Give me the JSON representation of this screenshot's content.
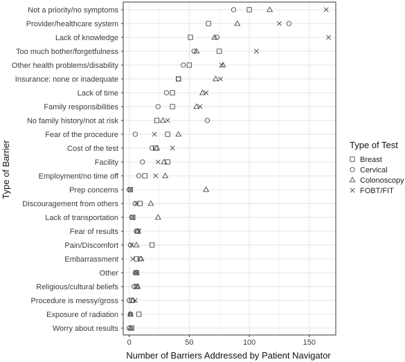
{
  "chart_data": {
    "type": "scatter",
    "title": "",
    "xlabel": "Number of Barriers Addressed by Patient Navigator",
    "ylabel": "Type of Barrier",
    "xlim": [
      -5,
      172
    ],
    "xticks": [
      0,
      50,
      100,
      150
    ],
    "grid": true,
    "legend_title": "Type of Test",
    "legend_position": "right",
    "categories": [
      "Not a priority/no symptoms",
      "Provider/healthcare system",
      "Lack of knowledge",
      "Too much bother/forgetfulness",
      "Other health problems/disability",
      "Insurance: none or inadequate",
      "Lack of time",
      "Family responsibilities",
      "No family history/not at risk",
      "Fear of the procedure",
      "Cost of the test",
      "Facility",
      "Employment/no time off",
      "Prep concerns",
      "Discouragement from others",
      "Lack of transportation",
      "Fear of results",
      "Pain/Discomfort",
      "Embarrassment",
      "Other",
      "Religious/cultural beliefs",
      "Procedure is messy/gross",
      "Exposure of radiation",
      "Worry about results"
    ],
    "series": [
      {
        "name": "Breast",
        "marker": "square",
        "values": [
          100,
          66,
          51,
          75,
          50,
          41,
          36,
          36,
          23,
          32,
          22,
          32,
          13,
          1,
          9,
          3,
          7,
          19,
          6,
          6,
          6,
          2,
          8,
          2
        ]
      },
      {
        "name": "Cervical",
        "marker": "circle",
        "values": [
          87,
          133,
          73,
          54,
          45,
          41,
          31,
          24,
          65,
          5,
          19,
          11,
          8,
          0,
          5,
          2,
          6,
          1,
          9,
          5,
          4,
          0,
          1,
          0
        ]
      },
      {
        "name": "Colonoscopy",
        "marker": "triangle",
        "values": [
          117,
          90,
          71,
          56,
          78,
          72,
          61,
          56,
          28,
          41,
          23,
          29,
          30,
          64,
          18,
          24,
          7,
          6,
          10,
          6,
          7,
          3,
          1,
          1
        ]
      },
      {
        "name": "FOBT/FIT",
        "marker": "x",
        "values": [
          164,
          125,
          166,
          106,
          77,
          76,
          64,
          59,
          32,
          21,
          36,
          24,
          22,
          1,
          6,
          3,
          8,
          2,
          3,
          6,
          6,
          5,
          1,
          2
        ]
      }
    ]
  }
}
